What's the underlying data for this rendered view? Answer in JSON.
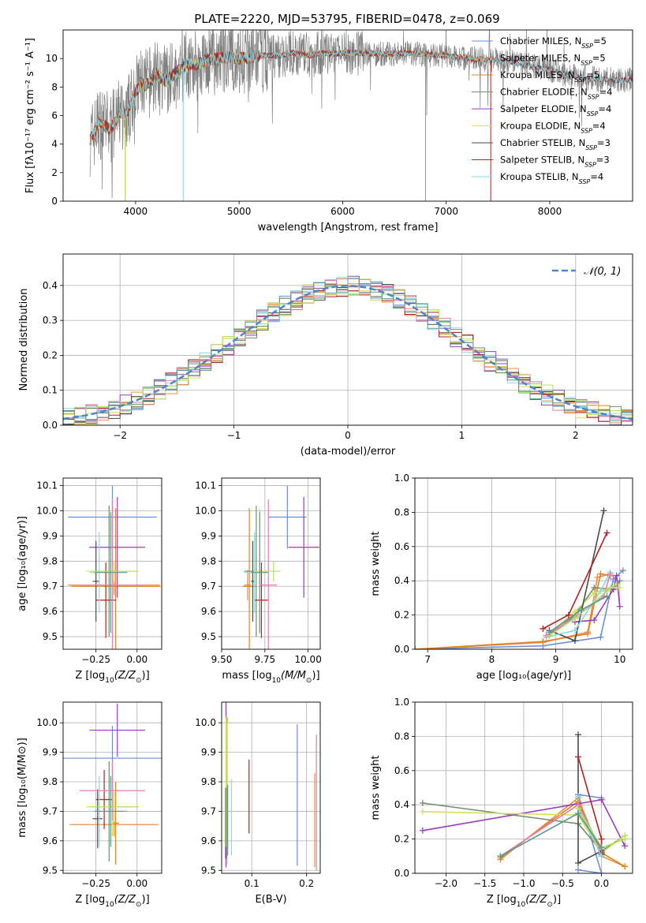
{
  "figure_title": "PLATE=2220, MJD=53795, FIBERID=0478, z=0.069",
  "colors": [
    "#6a8fd8",
    "#f08c40",
    "#e0821f",
    "#6f8f6f",
    "#9a3cc0",
    "#d4e05a",
    "#4a4a4a",
    "#b22222",
    "#88d8e0",
    "#e87ab0",
    "#b0e060",
    "#5a9a8a"
  ],
  "chart_data": [
    {
      "id": "spectrum",
      "type": "line",
      "title": "",
      "xlabel": "wavelength [Angstrom, rest frame]",
      "ylabel": "Flux [fλ10⁻¹⁷ erg cm⁻² s⁻¹ A⁻¹]",
      "xlim": [
        3300,
        8800
      ],
      "ylim": [
        0,
        12
      ],
      "xticks": [
        4000,
        5000,
        6000,
        7000,
        8000
      ],
      "yticks": [
        0,
        2,
        4,
        6,
        8,
        10
      ],
      "grid": false,
      "legend_position": "top-right",
      "continuum_x": [
        3560,
        3600,
        3650,
        3700,
        3750,
        3800,
        3850,
        3900,
        3950,
        4000,
        4050,
        4100,
        4150,
        4200,
        4250,
        4300,
        4400,
        4500,
        4600,
        4700,
        4800,
        4900,
        5000,
        5100,
        5200,
        5300,
        5400,
        5500,
        5600,
        5700,
        5800,
        5900,
        6000,
        6200,
        6400,
        6600,
        6800,
        7000,
        7200,
        7400,
        7600,
        7800,
        8000,
        8200,
        8400,
        8600,
        8800
      ],
      "continuum_y": [
        4.3,
        4.8,
        5.6,
        5.3,
        5.1,
        5.4,
        6.2,
        6.0,
        6.7,
        7.6,
        8.3,
        8.1,
        8.4,
        8.9,
        8.6,
        8.4,
        9.1,
        9.6,
        9.6,
        9.9,
        10.0,
        10.1,
        10.0,
        10.1,
        10.2,
        10.2,
        10.2,
        10.4,
        10.3,
        10.2,
        10.4,
        10.3,
        10.4,
        10.4,
        10.3,
        10.4,
        10.3,
        10.2,
        10.0,
        9.9,
        9.8,
        9.5,
        9.2,
        8.8,
        8.6,
        8.5,
        8.5
      ],
      "series": [
        {
          "name": "Chabrier MILES, N$_{SSP}$=5",
          "label_base": "Chabrier MILES, N",
          "label_end": "=5",
          "x_range": [
            3560,
            7430
          ]
        },
        {
          "name": "Salpeter MILES, N$_{SSP}$=5",
          "label_base": "Salpeter MILES, N",
          "label_end": "=5",
          "x_range": [
            3560,
            7430
          ]
        },
        {
          "name": "Kroupa MILES, N$_{SSP}$=5",
          "label_base": "Kroupa MILES, N",
          "label_end": "=5",
          "x_range": [
            3560,
            7430
          ]
        },
        {
          "name": "Chabrier ELODIE, N$_{SSP}$=4",
          "label_base": "Chabrier ELODIE, N",
          "label_end": "=4",
          "x_range": [
            3900,
            6800
          ]
        },
        {
          "name": "Salpeter ELODIE, N$_{SSP}$=4",
          "label_base": "Salpeter ELODIE, N",
          "label_end": "=4",
          "x_range": [
            3900,
            6800
          ]
        },
        {
          "name": "Kroupa ELODIE, N$_{SSP}$=4",
          "label_base": "Kroupa ELODIE, N",
          "label_end": "=4",
          "x_range": [
            3900,
            6800
          ]
        },
        {
          "name": "Chabrier STELIB, N$_{SSP}$=3",
          "label_base": "Chabrier STELIB, N",
          "label_end": "=3",
          "x_range": [
            3560,
            8800
          ]
        },
        {
          "name": "Salpeter STELIB, N$_{SSP}$=3",
          "label_base": "Salpeter STELIB, N",
          "label_end": "=3",
          "x_range": [
            3560,
            8800
          ]
        },
        {
          "name": "Kroupa STELIB, N$_{SSP}$=4",
          "label_base": "Kroupa STELIB, N",
          "label_end": "=4",
          "x_range": [
            3560,
            8800
          ]
        }
      ],
      "label_subscript": "SSP"
    },
    {
      "id": "residuals",
      "type": "line",
      "title": "",
      "xlabel": "(data-model)/error",
      "ylabel": "Normed distribution",
      "xlim": [
        -2.5,
        2.5
      ],
      "ylim": [
        0,
        0.49
      ],
      "xticks": [
        -2,
        -1,
        0,
        1,
        2
      ],
      "yticks": [
        0.0,
        0.1,
        0.2,
        0.3,
        0.4
      ],
      "grid": true,
      "legend_position": "top-right",
      "legend_label": "𝒩(0, 1)",
      "bin_width": 0.1,
      "histogram_series_count": 12
    },
    {
      "id": "z-age",
      "type": "scatter",
      "xlabel_main": "Z [log",
      "xlabel_sub": "10",
      "xlabel_mid": "(Z/Z",
      "xlabel_sub2": "⊙",
      "xlabel_end": ")]",
      "ylabel": "age  [log₁₀(age/yr)]",
      "xlim": [
        -0.45,
        0.15
      ],
      "ylim": [
        9.45,
        10.13
      ],
      "xticks": [
        -0.25,
        0.0
      ],
      "yticks": [
        9.5,
        9.6,
        9.7,
        9.8,
        9.9,
        10.0,
        10.1
      ],
      "grid": true,
      "points": [
        {
          "x": -0.15,
          "y": 9.975,
          "xerr": 0.27,
          "yerr": 0.125
        },
        {
          "x": -0.14,
          "y": 9.705,
          "xerr": 0.28,
          "yerr": 0.04
        },
        {
          "x": -0.13,
          "y": 9.7,
          "xerr": 0.27,
          "yerr": 0.31
        },
        {
          "x": -0.17,
          "y": 9.76,
          "xerr": 0.1,
          "yerr": 0.26
        },
        {
          "x": -0.12,
          "y": 9.855,
          "xerr": 0.17,
          "yerr": 0.2
        },
        {
          "x": -0.15,
          "y": 9.76,
          "xerr": 0.16,
          "yerr": 0.25
        },
        {
          "x": -0.25,
          "y": 9.72,
          "xerr": 0.02,
          "yerr": 0.16
        },
        {
          "x": -0.19,
          "y": 9.645,
          "xerr": 0.06,
          "yerr": 0.15
        },
        {
          "x": -0.23,
          "y": 9.755,
          "xerr": 0.06,
          "yerr": 0.16
        },
        {
          "x": -0.15,
          "y": 9.705,
          "xerr": 0.2,
          "yerr": 0.34
        },
        {
          "x": -0.14,
          "y": 9.76,
          "xerr": 0.14,
          "yerr": 0.04
        },
        {
          "x": -0.16,
          "y": 9.755,
          "xerr": 0.1,
          "yerr": 0.24
        }
      ]
    },
    {
      "id": "mass-age",
      "type": "scatter",
      "xlabel_main": "mass [log",
      "xlabel_sub": "10",
      "xlabel_mid": "(M/M",
      "xlabel_sub2": "⊙",
      "xlabel_end": ")]",
      "ylabel": "",
      "xlim": [
        9.5,
        10.07
      ],
      "ylim": [
        9.45,
        10.13
      ],
      "xticks": [
        9.5,
        9.75,
        10.0
      ],
      "yticks": [
        9.5,
        9.6,
        9.7,
        9.8,
        9.9,
        10.0,
        10.1
      ],
      "grid": true,
      "points": [
        {
          "x": 9.88,
          "y": 9.975,
          "xerr": 0.11,
          "yerr": 0.125
        },
        {
          "x": 9.65,
          "y": 9.705,
          "xerr": 0.02,
          "yerr": 0.06
        },
        {
          "x": 9.66,
          "y": 9.7,
          "xerr": 0.04,
          "yerr": 0.31
        },
        {
          "x": 9.7,
          "y": 9.76,
          "xerr": 0.07,
          "yerr": 0.26
        },
        {
          "x": 9.975,
          "y": 9.855,
          "xerr": 0.09,
          "yerr": 0.2
        },
        {
          "x": 9.72,
          "y": 9.76,
          "xerr": 0.04,
          "yerr": 0.25
        },
        {
          "x": 9.68,
          "y": 9.72,
          "xerr": 0.01,
          "yerr": 0.16
        },
        {
          "x": 9.73,
          "y": 9.645,
          "xerr": 0.04,
          "yerr": 0.15
        },
        {
          "x": 9.69,
          "y": 9.755,
          "xerr": 0.06,
          "yerr": 0.16
        },
        {
          "x": 9.77,
          "y": 9.705,
          "xerr": 0.05,
          "yerr": 0.34
        },
        {
          "x": 9.8,
          "y": 9.76,
          "xerr": 0.04,
          "yerr": 0.04
        },
        {
          "x": 9.72,
          "y": 9.755,
          "xerr": 0.05,
          "yerr": 0.24
        }
      ]
    },
    {
      "id": "age-weight",
      "type": "line",
      "xlabel": "age  [log₁₀(age/yr)]",
      "ylabel": "mass weight",
      "xlim": [
        6.8,
        10.2
      ],
      "ylim": [
        0,
        1.0
      ],
      "xticks": [
        7,
        8,
        9,
        10
      ],
      "yticks": [
        0.0,
        0.2,
        0.4,
        0.6,
        0.8,
        1.0
      ],
      "grid": true,
      "series": [
        {
          "x": [
            6.8,
            8.8,
            9.7,
            9.9,
            10.05
          ],
          "y": [
            0.0,
            0.02,
            0.07,
            0.41,
            0.46
          ]
        },
        {
          "x": [
            6.8,
            8.8,
            9.5,
            9.65,
            9.85
          ],
          "y": [
            0.0,
            0.04,
            0.1,
            0.42,
            0.44
          ]
        },
        {
          "x": [
            6.8,
            8.8,
            9.5,
            9.7,
            9.85
          ],
          "y": [
            0.0,
            0.045,
            0.09,
            0.44,
            0.43
          ]
        },
        {
          "x": [
            8.9,
            9.3,
            9.6,
            9.9,
            10.0
          ],
          "y": [
            0.08,
            0.2,
            0.36,
            0.35,
            0.4
          ]
        },
        {
          "x": [
            9.3,
            9.6,
            9.9,
            9.95,
            10.0
          ],
          "y": [
            0.16,
            0.17,
            0.35,
            0.43,
            0.25
          ]
        },
        {
          "x": [
            8.9,
            9.3,
            9.6,
            9.85,
            10.0
          ],
          "y": [
            0.09,
            0.22,
            0.33,
            0.36,
            0.36
          ]
        },
        {
          "x": [
            8.9,
            9.3,
            9.75
          ],
          "y": [
            0.11,
            0.05,
            0.81
          ]
        },
        {
          "x": [
            8.8,
            9.2,
            9.8
          ],
          "y": [
            0.12,
            0.2,
            0.68
          ]
        },
        {
          "x": [
            8.85,
            9.3,
            9.7,
            9.85
          ],
          "y": [
            0.07,
            0.11,
            0.34,
            0.45
          ]
        },
        {
          "x": [
            8.85,
            9.35,
            9.75,
            9.85
          ],
          "y": [
            0.08,
            0.2,
            0.31,
            0.44
          ]
        },
        {
          "x": [
            8.9,
            9.3,
            9.8,
            9.95
          ],
          "y": [
            0.08,
            0.18,
            0.34,
            0.38
          ]
        },
        {
          "x": [
            8.9,
            9.4,
            9.8
          ],
          "y": [
            0.1,
            0.23,
            0.31
          ]
        }
      ]
    },
    {
      "id": "z-mass",
      "type": "scatter",
      "xlabel_main": "Z [log",
      "xlabel_sub": "10",
      "xlabel_mid": "(Z/Z",
      "xlabel_sub2": "⊙",
      "xlabel_end": ")]",
      "ylabel": "mass [log₁₀(M/M⊙)]",
      "xlim": [
        -0.45,
        0.15
      ],
      "ylim": [
        9.49,
        10.07
      ],
      "xticks": [
        -0.25,
        0.0
      ],
      "yticks": [
        9.5,
        9.6,
        9.7,
        9.8,
        9.9,
        10.0
      ],
      "grid": true,
      "points": [
        {
          "x": -0.15,
          "y": 9.88,
          "xerr": 0.3,
          "yerr": 0.11
        },
        {
          "x": -0.14,
          "y": 9.655,
          "xerr": 0.27,
          "yerr": 0.04
        },
        {
          "x": -0.13,
          "y": 9.66,
          "xerr": 0.02,
          "yerr": 0.14
        },
        {
          "x": -0.17,
          "y": 9.7,
          "xerr": 0.09,
          "yerr": 0.17
        },
        {
          "x": -0.12,
          "y": 9.975,
          "xerr": 0.17,
          "yerr": 0.09
        },
        {
          "x": -0.15,
          "y": 9.715,
          "xerr": 0.16,
          "yerr": 0.1
        },
        {
          "x": -0.24,
          "y": 9.675,
          "xerr": 0.03,
          "yerr": 0.1
        },
        {
          "x": -0.2,
          "y": 9.74,
          "xerr": 0.05,
          "yerr": 0.1
        },
        {
          "x": -0.23,
          "y": 9.7,
          "xerr": 0.06,
          "yerr": 0.12
        },
        {
          "x": -0.15,
          "y": 9.77,
          "xerr": 0.2,
          "yerr": 0.1
        },
        {
          "x": -0.14,
          "y": 9.715,
          "xerr": 0.15,
          "yerr": 0.05
        },
        {
          "x": -0.16,
          "y": 9.7,
          "xerr": 0.1,
          "yerr": 0.12
        }
      ]
    },
    {
      "id": "ebv-mass",
      "type": "scatter",
      "xlabel": "E(B-V)",
      "ylabel": "",
      "xlim": [
        0.045,
        0.225
      ],
      "ylim": [
        9.49,
        10.07
      ],
      "xticks": [
        0.1,
        0.2
      ],
      "yticks": [
        9.5,
        9.6,
        9.7,
        9.8,
        9.9,
        10.0
      ],
      "grid": true,
      "points": [
        {
          "x": 0.183,
          "y": 9.755,
          "yerr": 0.24
        },
        {
          "x": 0.215,
          "y": 9.67,
          "yerr": 0.16
        },
        {
          "x": 0.055,
          "y": 9.78,
          "yerr": 0.24
        },
        {
          "x": 0.052,
          "y": 9.66,
          "yerr": 0.12
        },
        {
          "x": 0.053,
          "y": 9.79,
          "yerr": 0.28
        },
        {
          "x": 0.053,
          "y": 9.8,
          "yerr": 0.22
        },
        {
          "x": 0.054,
          "y": 9.66,
          "yerr": 0.12
        },
        {
          "x": 0.095,
          "y": 9.75,
          "yerr": 0.125
        },
        {
          "x": 0.063,
          "y": 9.68,
          "yerr": 0.13
        },
        {
          "x": 0.218,
          "y": 9.73,
          "yerr": 0.23
        },
        {
          "x": 0.055,
          "y": 9.76,
          "yerr": 0.24
        },
        {
          "x": 0.056,
          "y": 9.67,
          "yerr": 0.12
        }
      ]
    },
    {
      "id": "z-weight",
      "type": "line",
      "xlabel_main": "Z [log",
      "xlabel_sub": "10",
      "xlabel_mid": "(Z/Z",
      "xlabel_sub2": "⊙",
      "xlabel_end": ")]",
      "ylabel": "mass weight",
      "xlim": [
        -2.4,
        0.4
      ],
      "ylim": [
        0,
        1.0
      ],
      "xticks": [
        -2.0,
        -1.5,
        -1.0,
        -0.5,
        0.0
      ],
      "yticks": [
        0.0,
        0.2,
        0.4,
        0.6,
        0.8,
        1.0
      ],
      "grid": true,
      "series": [
        {
          "x": [
            -0.3,
            0.0,
            -0.3,
            0.0
          ],
          "y": [
            0.02,
            0.0,
            0.46,
            0.44
          ]
        },
        {
          "x": [
            -1.3,
            -0.3,
            0.0,
            0.3
          ],
          "y": [
            0.08,
            0.44,
            0.1,
            0.04
          ]
        },
        {
          "x": [
            -1.3,
            -0.3,
            0.0,
            0.3
          ],
          "y": [
            0.09,
            0.42,
            0.12,
            0.04
          ]
        },
        {
          "x": [
            -2.3,
            -0.3,
            0.0,
            0.3
          ],
          "y": [
            0.41,
            0.29,
            0.13,
            0.22
          ]
        },
        {
          "x": [
            -2.3,
            0.0,
            0.3
          ],
          "y": [
            0.25,
            0.43,
            0.16
          ]
        },
        {
          "x": [
            -2.3,
            -0.3,
            0.0,
            0.3
          ],
          "y": [
            0.36,
            0.34,
            0.12,
            0.22
          ]
        },
        {
          "x": [
            -0.3,
            -0.3,
            0.0,
            0.0
          ],
          "y": [
            0.81,
            0.06,
            0.13,
            0.11
          ]
        },
        {
          "x": [
            -0.3,
            0.0,
            0.0
          ],
          "y": [
            0.68,
            0.2,
            0.12
          ]
        },
        {
          "x": [
            -0.3,
            -0.3,
            0.0
          ],
          "y": [
            0.45,
            0.38,
            0.1
          ]
        },
        {
          "x": [
            -1.3,
            -0.3,
            0.0
          ],
          "y": [
            0.1,
            0.4,
            0.14
          ]
        },
        {
          "x": [
            -0.3,
            0.0,
            0.3
          ],
          "y": [
            0.38,
            0.15,
            0.2
          ]
        },
        {
          "x": [
            -1.3,
            -0.3,
            0.0
          ],
          "y": [
            0.1,
            0.35,
            0.15
          ]
        }
      ]
    }
  ]
}
